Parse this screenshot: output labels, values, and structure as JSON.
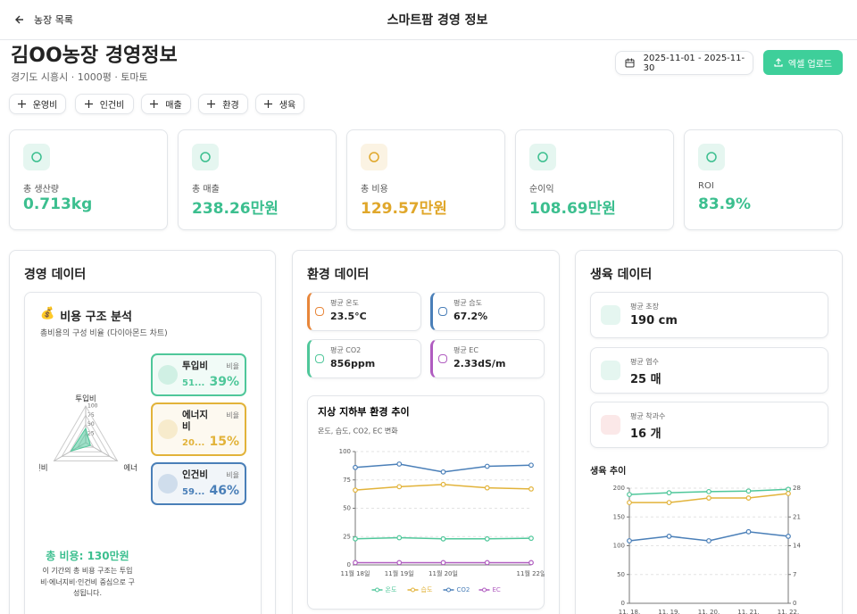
{
  "header": {
    "back": "농장 목록",
    "title": "스마트팜 경영 정보"
  },
  "farm": {
    "title": "김OO농장 경영정보",
    "subtitle": "경기도 시흥시 · 1000평 · 토마토",
    "date_range": "2025-11-01 - 2025-11-30",
    "upload_button": "엑셀 업로드"
  },
  "add_buttons": [
    "운영비",
    "인건비",
    "매출",
    "환경",
    "생육"
  ],
  "kpis": [
    {
      "label": "총 생산량",
      "value": "0.713kg",
      "color": "#3cbf8f"
    },
    {
      "label": "총 매출",
      "value": "238.26만원",
      "color": "#3cbf8f"
    },
    {
      "label": "총 비용",
      "value": "129.57만원",
      "color": "#e0a72b"
    },
    {
      "label": "순이익",
      "value": "108.69만원",
      "color": "#3cbf8f"
    },
    {
      "label": "ROI",
      "value": "83.9%",
      "color": "#3cbf8f"
    }
  ],
  "management": {
    "title": "경영 데이터",
    "card_icon": "💰",
    "card_title": "비용 구조 분석",
    "card_subtitle": "총비용의 구성 비율 (다이아몬드 차트)",
    "ratio_label": "비율",
    "items": [
      {
        "amount": "51...",
        "color": "#4fc79a"
      },
      {
        "amount": "20...",
        "color": "#e2b33a"
      },
      {
        "amount": "59...",
        "color": "#4a7fb8"
      }
    ],
    "total": "총 비용: 130만원",
    "description": "이 기간의 총 비용 구조는 투입비·에너지비·인건비 중심으로 구성됩니다."
  },
  "environment": {
    "title": "환경 데이터",
    "stats": [
      {
        "label": "평균 온도",
        "value": "23.5°C",
        "color": "#e8863a"
      },
      {
        "label": "평균 습도",
        "value": "67.2%",
        "color": "#4a7fb8"
      },
      {
        "label": "평균 CO2",
        "value": "856ppm",
        "color": "#4fc79a"
      },
      {
        "label": "평균 EC",
        "value": "2.33dS/m",
        "color": "#b05cc0"
      }
    ]
  },
  "growth": {
    "title": "생육 데이터",
    "stats": [
      {
        "label": "평균 초장",
        "value": "190 cm",
        "color": "#3cbf8f"
      },
      {
        "label": "평균 엽수",
        "value": "25 매",
        "color": "#3cbf8f"
      },
      {
        "label": "평균 착과수",
        "value": "16 개",
        "color": "#e05555"
      }
    ]
  },
  "chart_data": [
    {
      "type": "radar",
      "categories": [
        "투입비",
        "에너지비",
        "인건비"
      ],
      "values": [
        39,
        15,
        46
      ],
      "value_labels": [
        "39%",
        "15%",
        "46%"
      ],
      "rlim": [
        0,
        100
      ],
      "rticks": [
        25,
        50,
        75,
        100
      ],
      "color": "#4fc79a"
    },
    {
      "type": "line",
      "title": "지상 지하부 환경 추이",
      "subtitle": "온도, 습도, CO2, EC 변화",
      "categories": [
        "11월 18일",
        "11월 19일",
        "11월 20일",
        null,
        "11월 22일"
      ],
      "series": [
        {
          "name": "온도",
          "color": "#4fc79a",
          "values": [
            23,
            24,
            23,
            23,
            23.5
          ]
        },
        {
          "name": "습도",
          "color": "#e2b33a",
          "values": [
            66,
            69,
            71,
            68,
            67
          ]
        },
        {
          "name": "CO2",
          "color": "#4a7fb8",
          "values": [
            86,
            89,
            82,
            87,
            88
          ]
        },
        {
          "name": "EC",
          "color": "#b05cc0",
          "values": [
            2,
            2,
            2,
            2,
            2
          ]
        }
      ],
      "ylim": [
        0,
        100
      ],
      "yticks": [
        0,
        25,
        50,
        75,
        100
      ],
      "grid": true,
      "legend": "bottom"
    },
    {
      "type": "line",
      "title": "생육 추이",
      "categories": [
        "11. 18.",
        "11. 19.",
        "11. 20.",
        "11. 21.",
        "11. 22."
      ],
      "series": [
        {
          "color": "#4fc79a",
          "values": [
            189,
            192,
            194,
            195,
            198
          ]
        },
        {
          "color": "#e2b33a",
          "axis": "y2",
          "values": [
            24.5,
            24.5,
            25.6,
            25.6,
            26.7
          ]
        },
        {
          "color": "#4a7fb8",
          "axis": "y2",
          "values": [
            15.2,
            16.3,
            15.2,
            17.4,
            16.3
          ]
        }
      ],
      "ylim": [
        0,
        200
      ],
      "yticks": [
        0,
        50,
        100,
        150,
        200
      ],
      "y2lim": [
        0,
        28
      ],
      "y2ticks": [
        0,
        7,
        14,
        21,
        28
      ],
      "grid": true
    }
  ]
}
